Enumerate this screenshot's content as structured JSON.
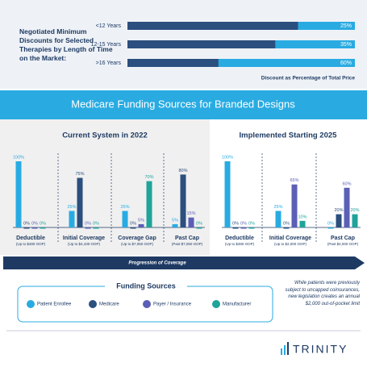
{
  "banner": "Medicare Funding Sources for Branded Designs",
  "progression_label": "Progression of Coverage",
  "legend_title": "Funding Sources",
  "note": "While patients were previously subject to uncapped coinsurances, new legislation creates an annual $2,000 out-of-pocket limit",
  "logo": "TRINITY",
  "chart_data": [
    {
      "type": "hbar",
      "title": "Negotiated Minimum Discounts for Selected Therapies by Length of Time on the Market:",
      "categories": [
        "<12 Years",
        "12-15 Years",
        ">16 Years"
      ],
      "values": [
        25,
        35,
        60
      ],
      "value_labels": [
        "25%",
        "35%",
        "60%"
      ],
      "xlabel": "Discount as Percentage of Total Price",
      "xlim": [
        0,
        100
      ],
      "color": "#29abe2",
      "track_color": "#2b4f7e"
    },
    {
      "type": "bar",
      "title": "Current System in 2022",
      "categories": [
        "Deductible",
        "Initial Coverage",
        "Coverage Gap",
        "Past Cap"
      ],
      "category_notes": [
        "(Up to $480 OOP)",
        "(Up to $4,430 OOP)",
        "(Up to $7,050 OOP)",
        "(Past $7,050 OOP)"
      ],
      "ylim": [
        0,
        100
      ],
      "series": [
        {
          "name": "Patient Enrollee",
          "color": "#29abe2",
          "values": [
            100,
            25,
            25,
            5
          ],
          "value_labels": [
            "100%",
            "25%",
            "25%",
            "5%"
          ]
        },
        {
          "name": "Medicare",
          "color": "#2b4f7e",
          "values": [
            0,
            75,
            0,
            80
          ],
          "value_labels": [
            "0%",
            "75%",
            "0%",
            "80%"
          ]
        },
        {
          "name": "Payer / Insurance",
          "color": "#5b5fb5",
          "values": [
            0,
            0,
            5,
            15
          ],
          "value_labels": [
            "0%",
            "0%",
            "5%",
            "15%"
          ]
        },
        {
          "name": "Manufacturer",
          "color": "#1fa39a",
          "values": [
            0,
            0,
            70,
            0
          ],
          "value_labels": [
            "0%",
            "0%",
            "70%",
            "0%"
          ]
        }
      ]
    },
    {
      "type": "bar",
      "title": "Implemented Starting 2025",
      "categories": [
        "Deductible",
        "Initial Coverage",
        "Past Cap"
      ],
      "category_notes": [
        "(Up to $480 OOP)",
        "(Up to $2,000 OOP)",
        "(Past $2,000 OOP)"
      ],
      "ylim": [
        0,
        100
      ],
      "series": [
        {
          "name": "Patient Enrollee",
          "color": "#29abe2",
          "values": [
            100,
            25,
            0
          ],
          "value_labels": [
            "100%",
            "25%",
            "0%"
          ]
        },
        {
          "name": "Medicare",
          "color": "#2b4f7e",
          "values": [
            0,
            0,
            20
          ],
          "value_labels": [
            "0%",
            "0%",
            "20%"
          ]
        },
        {
          "name": "Payer / Insurance",
          "color": "#5b5fb5",
          "values": [
            0,
            65,
            60
          ],
          "value_labels": [
            "0%",
            "65%",
            "60%"
          ]
        },
        {
          "name": "Manufacturer",
          "color": "#1fa39a",
          "values": [
            0,
            10,
            20
          ],
          "value_labels": [
            "0%",
            "10%",
            "20%"
          ]
        }
      ]
    }
  ]
}
